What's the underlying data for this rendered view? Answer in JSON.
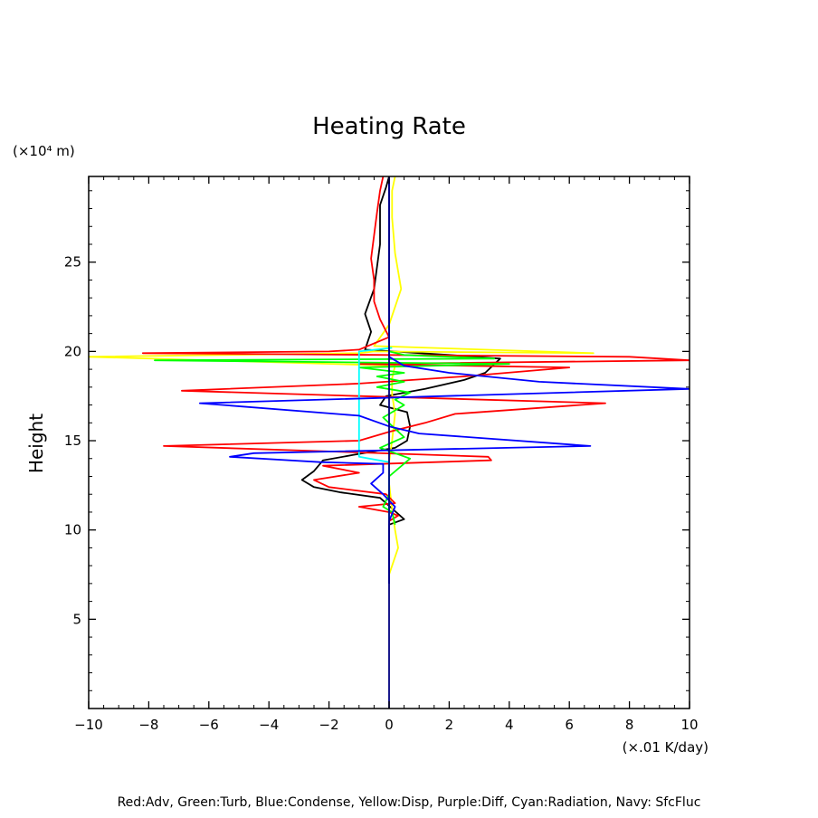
{
  "chart_data": {
    "type": "line",
    "title": "Heating Rate",
    "ylabel": "Height",
    "yunit": "(×10⁴ m)",
    "xlabel": "(×.01 K/day)",
    "xlim": [
      -10,
      10
    ],
    "ylim": [
      0,
      29.8
    ],
    "xticks": [
      -10,
      -8,
      -6,
      -4,
      -2,
      0,
      2,
      4,
      6,
      8,
      10
    ],
    "yticks": [
      5,
      10,
      15,
      20,
      25
    ],
    "footer": "Red:Adv, Green:Turb, Blue:Condense, Yellow:Disp, Purple:Diff, Cyan:Radiation, Navy: SfcFluc",
    "series": [
      {
        "color": "#000000",
        "points": [
          [
            0.0,
            7.0
          ],
          [
            0.0,
            10.3
          ],
          [
            0.5,
            10.6
          ],
          [
            0.1,
            11.2
          ],
          [
            -0.3,
            11.8
          ],
          [
            -1.6,
            12.1
          ],
          [
            -2.5,
            12.4
          ],
          [
            -2.9,
            12.8
          ],
          [
            -2.5,
            13.3
          ],
          [
            -2.2,
            13.9
          ],
          [
            -1.2,
            14.2
          ],
          [
            0.2,
            14.6
          ],
          [
            0.6,
            15.0
          ],
          [
            0.7,
            15.8
          ],
          [
            0.6,
            16.6
          ],
          [
            -0.3,
            17.0
          ],
          [
            -0.1,
            17.5
          ],
          [
            1.2,
            17.9
          ],
          [
            2.5,
            18.4
          ],
          [
            3.2,
            18.8
          ],
          [
            3.7,
            19.6
          ],
          [
            2.0,
            19.8
          ],
          [
            -0.8,
            20.1
          ],
          [
            -0.6,
            21.1
          ],
          [
            -0.8,
            22.1
          ],
          [
            -0.5,
            23.5
          ],
          [
            -0.3,
            26.0
          ],
          [
            -0.3,
            28.2
          ],
          [
            -0.1,
            29.2
          ],
          [
            0.0,
            29.8
          ]
        ]
      },
      {
        "color": "#ffff00",
        "points": [
          [
            0.0,
            7.5
          ],
          [
            0.3,
            9.0
          ],
          [
            0.2,
            10.0
          ],
          [
            0.1,
            11.2
          ],
          [
            0.0,
            12.6
          ],
          [
            0.0,
            13.8
          ],
          [
            0.1,
            15.0
          ],
          [
            0.2,
            16.5
          ],
          [
            0.1,
            17.6
          ],
          [
            0.1,
            18.5
          ],
          [
            0.2,
            19.2
          ],
          [
            -10.0,
            19.7
          ],
          [
            -1.0,
            19.9
          ],
          [
            -0.5,
            20.0
          ],
          [
            6.8,
            19.9
          ],
          [
            -0.5,
            20.3
          ],
          [
            0.0,
            21.5
          ],
          [
            0.4,
            23.5
          ],
          [
            0.2,
            25.5
          ],
          [
            0.1,
            27.5
          ],
          [
            0.1,
            29.0
          ],
          [
            0.2,
            29.8
          ]
        ]
      },
      {
        "color": "#ff0000",
        "points": [
          [
            0.0,
            10.5
          ],
          [
            0.3,
            10.8
          ],
          [
            0.0,
            11.0
          ],
          [
            -1.0,
            11.3
          ],
          [
            0.2,
            11.5
          ],
          [
            -0.1,
            12.0
          ],
          [
            -2.0,
            12.4
          ],
          [
            -2.5,
            12.8
          ],
          [
            -1.0,
            13.2
          ],
          [
            -2.2,
            13.6
          ],
          [
            3.4,
            13.9
          ],
          [
            3.3,
            14.1
          ],
          [
            -2.0,
            14.4
          ],
          [
            -7.5,
            14.7
          ],
          [
            -1.0,
            15.0
          ],
          [
            0.0,
            15.5
          ],
          [
            1.2,
            16.0
          ],
          [
            2.2,
            16.5
          ],
          [
            7.2,
            17.1
          ],
          [
            -1.0,
            17.5
          ],
          [
            -6.9,
            17.8
          ],
          [
            -1.0,
            18.2
          ],
          [
            2.5,
            18.6
          ],
          [
            6.0,
            19.1
          ],
          [
            -1.0,
            19.3
          ],
          [
            10.0,
            19.5
          ],
          [
            8.0,
            19.7
          ],
          [
            -8.2,
            19.9
          ],
          [
            -2.0,
            20.0
          ],
          [
            -1.0,
            20.1
          ],
          [
            0.0,
            20.8
          ],
          [
            -0.3,
            21.8
          ],
          [
            -0.5,
            22.8
          ],
          [
            -0.5,
            24.0
          ],
          [
            -0.6,
            25.2
          ],
          [
            -0.5,
            26.5
          ],
          [
            -0.4,
            27.8
          ],
          [
            -0.3,
            29.0
          ],
          [
            -0.2,
            29.8
          ]
        ]
      },
      {
        "color": "#00ff00",
        "points": [
          [
            0.2,
            10.3
          ],
          [
            0.1,
            11.0
          ],
          [
            -0.2,
            11.3
          ],
          [
            0.0,
            12.0
          ],
          [
            0.0,
            13.0
          ],
          [
            0.7,
            14.0
          ],
          [
            -0.3,
            14.6
          ],
          [
            0.5,
            15.2
          ],
          [
            -0.2,
            16.3
          ],
          [
            0.5,
            17.0
          ],
          [
            0.2,
            17.3
          ],
          [
            0.7,
            17.7
          ],
          [
            -0.4,
            18.0
          ],
          [
            0.5,
            18.3
          ],
          [
            -0.4,
            18.6
          ],
          [
            0.5,
            18.8
          ],
          [
            -1.0,
            19.1
          ],
          [
            4.0,
            19.3
          ],
          [
            -7.8,
            19.5
          ],
          [
            3.5,
            19.6
          ],
          [
            0.5,
            19.8
          ],
          [
            0.0,
            20.0
          ]
        ]
      },
      {
        "color": "#00ffff",
        "points": [
          [
            0.0,
            10.5
          ],
          [
            0.0,
            13.8
          ],
          [
            -1.0,
            14.1
          ],
          [
            -1.0,
            19.2
          ],
          [
            -1.0,
            20.0
          ],
          [
            0.1,
            20.2
          ]
        ]
      },
      {
        "color": "#0000ff",
        "points": [
          [
            0.0,
            7.0
          ],
          [
            0.0,
            10.5
          ],
          [
            0.2,
            11.3
          ],
          [
            -0.2,
            12.0
          ],
          [
            -0.6,
            12.6
          ],
          [
            -0.2,
            13.2
          ],
          [
            -0.2,
            13.7
          ],
          [
            -2.3,
            13.8
          ],
          [
            -5.3,
            14.1
          ],
          [
            -4.5,
            14.3
          ],
          [
            6.7,
            14.7
          ],
          [
            1.0,
            15.4
          ],
          [
            0.0,
            15.8
          ],
          [
            -1.0,
            16.4
          ],
          [
            -6.3,
            17.1
          ],
          [
            10.0,
            17.9
          ],
          [
            5.0,
            18.3
          ],
          [
            2.0,
            18.8
          ],
          [
            0.5,
            19.2
          ],
          [
            0.0,
            19.7
          ],
          [
            0.0,
            29.8
          ]
        ]
      },
      {
        "color": "#000080",
        "points": [
          [
            0.0,
            0.0
          ],
          [
            0.0,
            29.8
          ]
        ]
      }
    ]
  }
}
